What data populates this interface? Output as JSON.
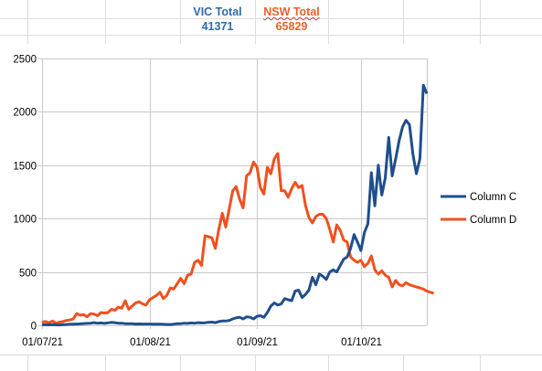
{
  "spreadsheet": {
    "summary": {
      "vic_label": "VIC Total",
      "vic_value": "41371",
      "nsw_label": "NSW Total",
      "nsw_value": "65829"
    }
  },
  "colors": {
    "vic": "#2e6aa8",
    "nsw": "#e8612c",
    "series_c": "#1f4e8c",
    "series_d": "#f0501e",
    "grid": "#c8c8c8",
    "cell_border": "#dcdcdc"
  },
  "chart_data": {
    "type": "line",
    "title": "",
    "xlabel": "",
    "ylabel": "",
    "ylim": [
      0,
      2500
    ],
    "yticks": [
      "0",
      "500",
      "1000",
      "1500",
      "2000",
      "2500"
    ],
    "xticks": [
      "01/07/21",
      "01/08/21",
      "01/09/21",
      "01/10/21"
    ],
    "xrange_days": [
      0,
      111
    ],
    "xtick_days": [
      0,
      31,
      62,
      92
    ],
    "grid": true,
    "legend_position": "right",
    "series": [
      {
        "name": "Column C",
        "values": [
          5,
          5,
          4,
          6,
          4,
          3,
          6,
          8,
          10,
          10,
          12,
          14,
          16,
          18,
          20,
          25,
          20,
          22,
          18,
          23,
          27,
          25,
          20,
          20,
          15,
          15,
          15,
          12,
          13,
          12,
          12,
          12,
          10,
          10,
          10,
          9,
          8,
          8,
          10,
          15,
          15,
          20,
          18,
          22,
          20,
          25,
          22,
          24,
          28,
          30,
          25,
          35,
          40,
          40,
          45,
          60,
          70,
          75,
          60,
          80,
          75,
          60,
          85,
          90,
          75,
          120,
          180,
          210,
          190,
          200,
          250,
          240,
          230,
          320,
          330,
          260,
          290,
          330,
          450,
          380,
          480,
          460,
          430,
          500,
          520,
          500,
          560,
          620,
          640,
          720,
          850,
          780,
          700,
          870,
          950,
          1430,
          1120,
          1500,
          1220,
          1380,
          1760,
          1400,
          1560,
          1730,
          1860,
          1920,
          1880,
          1600,
          1420,
          1560,
          2250,
          2170
        ]
      },
      {
        "name": "Column D",
        "values": [
          30,
          35,
          25,
          40,
          20,
          30,
          35,
          45,
          50,
          60,
          110,
          95,
          100,
          80,
          110,
          105,
          90,
          120,
          115,
          120,
          150,
          140,
          170,
          160,
          230,
          150,
          180,
          210,
          220,
          200,
          190,
          240,
          260,
          280,
          310,
          250,
          280,
          350,
          340,
          390,
          440,
          390,
          470,
          480,
          590,
          610,
          560,
          840,
          830,
          820,
          720,
          900,
          1050,
          920,
          1090,
          1260,
          1300,
          1180,
          1100,
          1400,
          1430,
          1530,
          1480,
          1290,
          1230,
          1480,
          1420,
          1560,
          1610,
          1260,
          1260,
          1200,
          1280,
          1340,
          1290,
          1310,
          1120,
          1010,
          960,
          1020,
          1040,
          1040,
          1000,
          900,
          780,
          940,
          890,
          800,
          780,
          640,
          610,
          590,
          610,
          550,
          580,
          650,
          520,
          480,
          510,
          470,
          450,
          360,
          420,
          380,
          370,
          400,
          380,
          370,
          360,
          350,
          340,
          320,
          310,
          300
        ]
      }
    ]
  }
}
